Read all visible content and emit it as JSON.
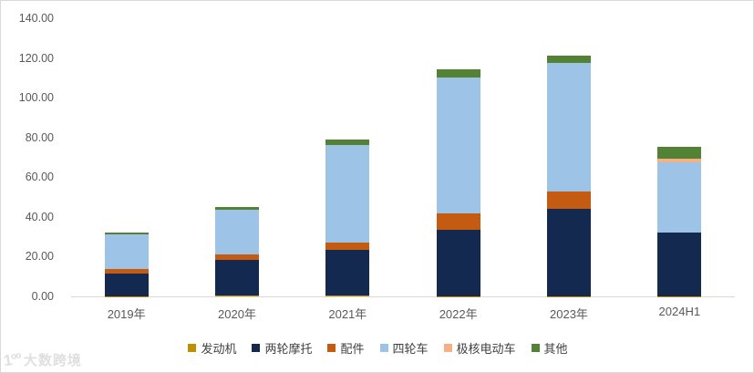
{
  "chart_data": {
    "type": "bar",
    "stacked": true,
    "title": "",
    "xlabel": "",
    "ylabel": "",
    "ylim": [
      0,
      140
    ],
    "grid": false,
    "legend_position": "bottom",
    "categories": [
      "2019年",
      "2020年",
      "2021年",
      "2022年",
      "2023年",
      "2024H1"
    ],
    "y_ticks": [
      {
        "value": 0,
        "label": "0.00"
      },
      {
        "value": 20,
        "label": "20.00"
      },
      {
        "value": 40,
        "label": "40.00"
      },
      {
        "value": 60,
        "label": "60.00"
      },
      {
        "value": 80,
        "label": "80.00"
      },
      {
        "value": 100,
        "label": "100.00"
      },
      {
        "value": 120,
        "label": "120.00"
      },
      {
        "value": 140,
        "label": "140.00"
      }
    ],
    "series": [
      {
        "name": "发动机",
        "color": "#BF8F00",
        "values": [
          0.1,
          0.4,
          0.5,
          0.2,
          0.2,
          0.1
        ]
      },
      {
        "name": "两轮摩托",
        "color": "#13294F",
        "values": [
          11.2,
          17.9,
          22.9,
          33.1,
          43.9,
          32.1
        ]
      },
      {
        "name": "配件",
        "color": "#C55A11",
        "values": [
          2.3,
          3.0,
          3.7,
          8.5,
          8.5,
          0
        ]
      },
      {
        "name": "四轮车",
        "color": "#9DC3E6",
        "values": [
          17.8,
          22.4,
          49.2,
          68.2,
          65.0,
          35.5
        ]
      },
      {
        "name": "极核电动车",
        "color": "#F4B183",
        "values": [
          0,
          0,
          0,
          0,
          0,
          1.5
        ]
      },
      {
        "name": "其他",
        "color": "#548235",
        "values": [
          0.8,
          1.4,
          2.6,
          4.2,
          3.5,
          6.3
        ]
      }
    ]
  },
  "colors": {
    "axis_line": "#D9D9D9",
    "tick_text": "#595959",
    "frame_border": "#D9D9D9"
  },
  "watermark": {
    "icon_text": "1ºº",
    "text": "大数跨境"
  }
}
